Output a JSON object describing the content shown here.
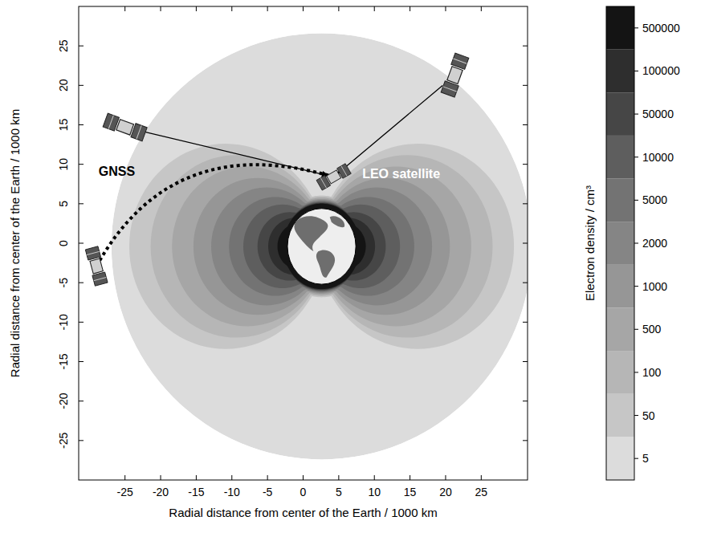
{
  "chart_data": {
    "type": "contour_map",
    "xlabel": "Radial distance from center of the Earth / 1000 km",
    "ylabel": "Radial distance from center of the Earth / 1000 km",
    "xlim": [
      -31.5,
      31.5
    ],
    "ylim": [
      -30,
      30
    ],
    "xticks": [
      -25,
      -20,
      -15,
      -10,
      -5,
      0,
      5,
      10,
      15,
      20,
      25
    ],
    "yticks": [
      -25,
      -20,
      -15,
      -10,
      -5,
      0,
      5,
      10,
      15,
      20,
      25
    ],
    "center": [
      2.6,
      -0.4
    ],
    "boundary_radii": [
      29.5,
      27
    ],
    "earth_radius": 4.8,
    "contours": [
      {
        "level": 5,
        "color": "#dcdcdc"
      },
      {
        "level": 50,
        "extent": 27,
        "color": "#c6c6c6"
      },
      {
        "level": 100,
        "extent": 24,
        "color": "#b6b6b6"
      },
      {
        "level": 500,
        "extent": 21,
        "color": "#a6a6a6"
      },
      {
        "level": 1000,
        "extent": 18,
        "color": "#969696"
      },
      {
        "level": 2000,
        "extent": 15.5,
        "color": "#858585"
      },
      {
        "level": 5000,
        "extent": 13,
        "color": "#737373"
      },
      {
        "level": 10000,
        "extent": 11,
        "color": "#5e5e5e"
      },
      {
        "level": 50000,
        "extent": 9,
        "color": "#464646"
      },
      {
        "level": 100000,
        "extent": 7.5,
        "color": "#2e2e2e"
      },
      {
        "level": 500000,
        "extent": 6.2,
        "color": "#141414"
      }
    ],
    "colorbar": {
      "label": "Electron density / cm³"
    },
    "annotations": [
      {
        "text": "GNSS",
        "x": -28.7,
        "y": 8.5
      },
      {
        "text": "LEO satellite",
        "x": 8.3,
        "y": 8.2
      }
    ],
    "satellites": [
      {
        "x": -25,
        "y": 14.7
      },
      {
        "x": 21.3,
        "y": 21.3
      },
      {
        "x": -29,
        "y": -2.9
      },
      {
        "x": 4.3,
        "y": 8.4
      }
    ]
  }
}
